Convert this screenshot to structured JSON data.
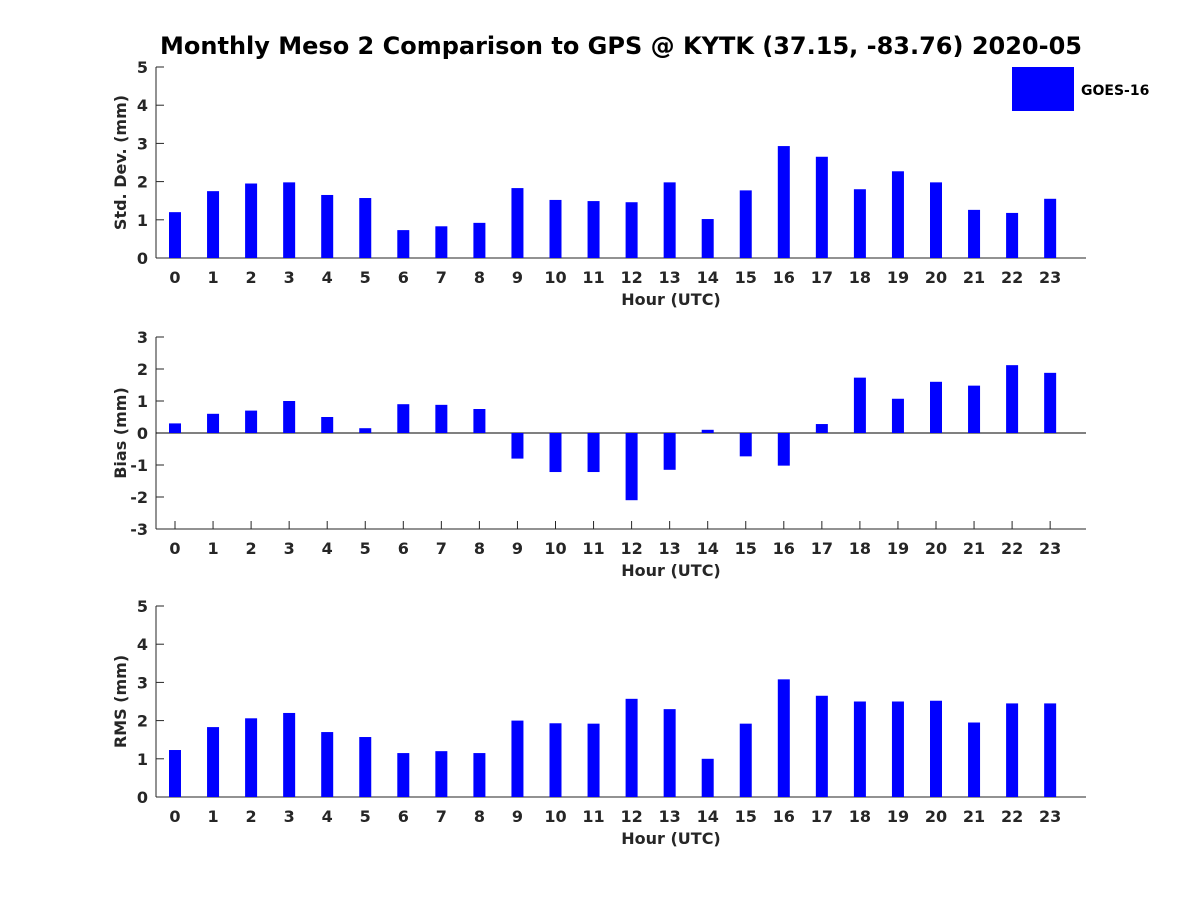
{
  "title": "Monthly Meso 2 Comparison to GPS @ KYTK (37.15, -83.76) 2020-05",
  "colors": {
    "bar": "#0000ff",
    "axis": "#262626"
  },
  "legend": {
    "label": "GOES-16",
    "placement": "top-right"
  },
  "chart_data": [
    {
      "type": "bar",
      "xlabel": "Hour (UTC)",
      "ylabel": "Std. Dev. (mm)",
      "ylim": [
        0,
        5
      ],
      "yticks": [
        0,
        1,
        2,
        3,
        4,
        5
      ],
      "categories": [
        "0",
        "1",
        "2",
        "3",
        "4",
        "5",
        "6",
        "7",
        "8",
        "9",
        "10",
        "11",
        "12",
        "13",
        "14",
        "15",
        "16",
        "17",
        "18",
        "19",
        "20",
        "21",
        "22",
        "23"
      ],
      "series": [
        {
          "name": "GOES-16",
          "values": [
            1.2,
            1.75,
            1.95,
            1.98,
            1.65,
            1.57,
            0.73,
            0.83,
            0.92,
            1.83,
            1.52,
            1.49,
            1.46,
            1.98,
            1.02,
            1.77,
            2.93,
            2.65,
            1.8,
            2.27,
            1.98,
            1.26,
            1.18,
            1.55
          ]
        }
      ]
    },
    {
      "type": "bar",
      "xlabel": "Hour (UTC)",
      "ylabel": "Bias (mm)",
      "ylim": [
        -3,
        3
      ],
      "yticks": [
        -3,
        -2,
        -1,
        0,
        1,
        2,
        3
      ],
      "categories": [
        "0",
        "1",
        "2",
        "3",
        "4",
        "5",
        "6",
        "7",
        "8",
        "9",
        "10",
        "11",
        "12",
        "13",
        "14",
        "15",
        "16",
        "17",
        "18",
        "19",
        "20",
        "21",
        "22",
        "23"
      ],
      "series": [
        {
          "name": "GOES-16",
          "values": [
            0.3,
            0.6,
            0.7,
            1.0,
            0.5,
            0.15,
            0.9,
            0.88,
            0.75,
            -0.8,
            -1.22,
            -1.22,
            -2.1,
            -1.15,
            0.1,
            -0.73,
            -1.02,
            0.28,
            1.73,
            1.07,
            1.6,
            1.48,
            2.12,
            1.88
          ]
        }
      ]
    },
    {
      "type": "bar",
      "xlabel": "Hour (UTC)",
      "ylabel": "RMS (mm)",
      "ylim": [
        0,
        5
      ],
      "yticks": [
        0,
        1,
        2,
        3,
        4,
        5
      ],
      "categories": [
        "0",
        "1",
        "2",
        "3",
        "4",
        "5",
        "6",
        "7",
        "8",
        "9",
        "10",
        "11",
        "12",
        "13",
        "14",
        "15",
        "16",
        "17",
        "18",
        "19",
        "20",
        "21",
        "22",
        "23"
      ],
      "series": [
        {
          "name": "GOES-16",
          "values": [
            1.23,
            1.83,
            2.06,
            2.2,
            1.7,
            1.57,
            1.15,
            1.2,
            1.15,
            2.0,
            1.93,
            1.92,
            2.57,
            2.3,
            1.0,
            1.92,
            3.08,
            2.65,
            2.5,
            2.5,
            2.52,
            1.95,
            2.45,
            2.45
          ]
        }
      ]
    }
  ]
}
